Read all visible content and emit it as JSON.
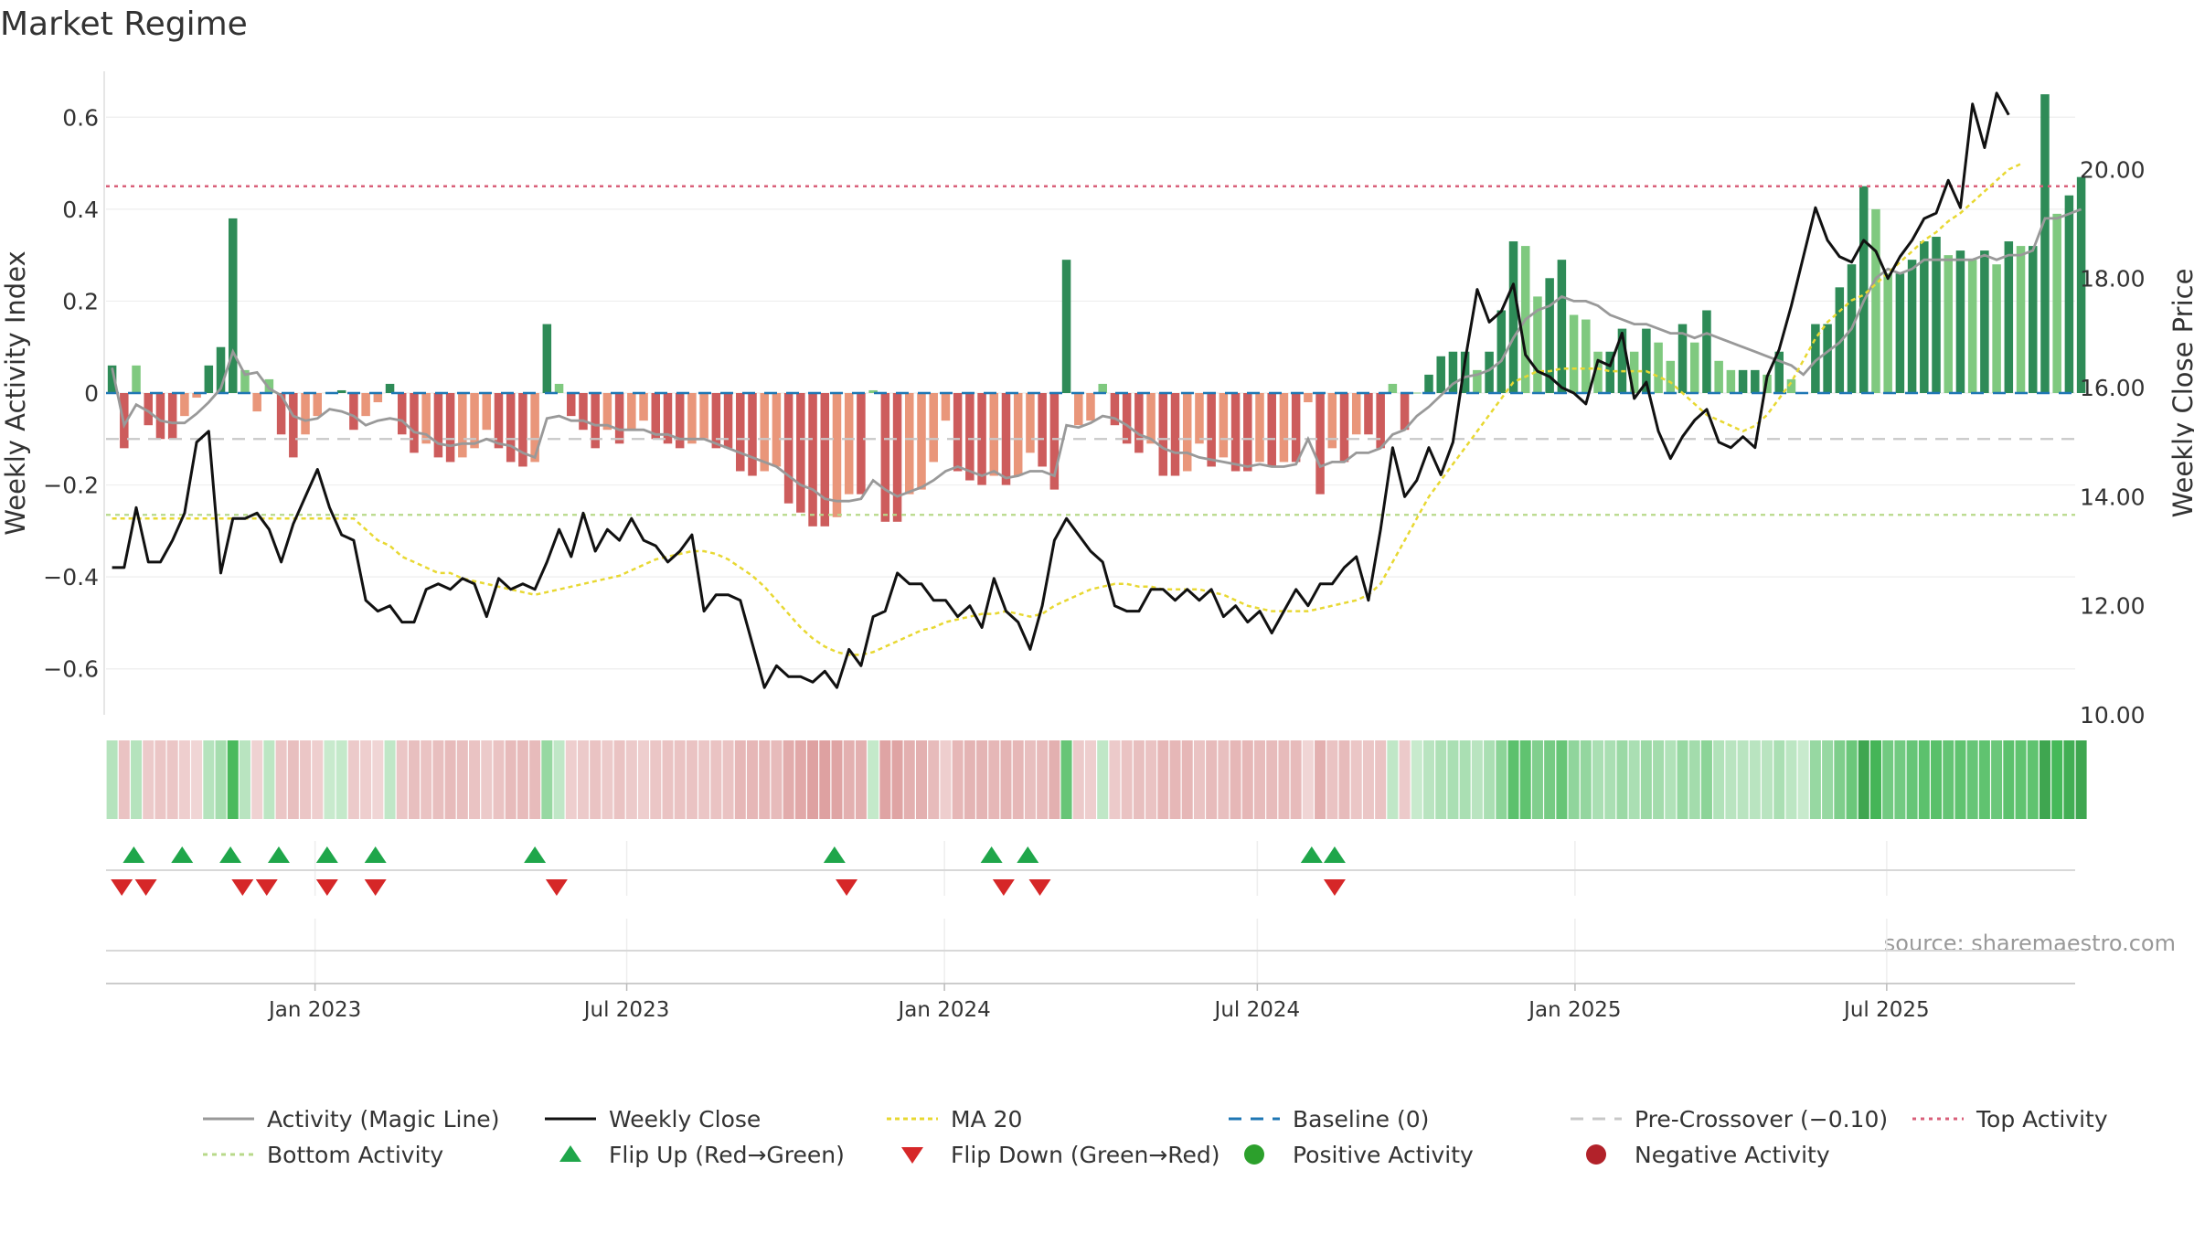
{
  "chart_data": {
    "type": "bar",
    "title": "Market Regime",
    "source": "source: sharemaestro.com",
    "ylabel_left": "Weekly Activity Index",
    "ylabel_right": "Weekly Close Price",
    "left_axis": {
      "ylim": [
        -0.7,
        0.7
      ],
      "ticks": [
        -0.6,
        -0.4,
        -0.2,
        0,
        0.2,
        0.4,
        0.6
      ],
      "tick_labels": [
        "−0.6",
        "−0.4",
        "−0.2",
        "0",
        "0.2",
        "0.4",
        "0.6"
      ]
    },
    "right_axis": {
      "ylim": [
        10.0,
        21.8
      ],
      "ticks": [
        10,
        12,
        14,
        16,
        18,
        20
      ],
      "tick_labels": [
        "10.00",
        "12.00",
        "14.00",
        "16.00",
        "18.00",
        "20.00"
      ]
    },
    "x_axis": {
      "start": "2022-09-05",
      "weeks": 163,
      "ticks": [
        {
          "label": "Jan 2023",
          "week": 17.3
        },
        {
          "label": "Jul 2023",
          "week": 43.1
        },
        {
          "label": "Jan 2024",
          "week": 69.4
        },
        {
          "label": "Jul 2024",
          "week": 95.3
        },
        {
          "label": "Jan 2025",
          "week": 121.6
        },
        {
          "label": "Jul 2025",
          "week": 147.4
        }
      ]
    },
    "reference_lines": {
      "baseline": 0,
      "pre_crossover": -0.1,
      "top_activity": 0.45,
      "bottom_activity": -0.265
    },
    "activity": [
      0.06,
      -0.12,
      0.06,
      -0.07,
      -0.1,
      -0.1,
      -0.05,
      -0.01,
      0.06,
      0.1,
      0.38,
      0.05,
      -0.04,
      0.03,
      -0.09,
      -0.14,
      -0.09,
      -0.05,
      0.002,
      0.006,
      -0.08,
      -0.05,
      -0.02,
      0.02,
      -0.09,
      -0.13,
      -0.11,
      -0.14,
      -0.15,
      -0.14,
      -0.12,
      -0.08,
      -0.12,
      -0.15,
      -0.16,
      -0.15,
      0.15,
      0.02,
      -0.05,
      -0.08,
      -0.12,
      -0.08,
      -0.11,
      -0.08,
      -0.06,
      -0.1,
      -0.11,
      -0.12,
      -0.11,
      -0.1,
      -0.12,
      -0.12,
      -0.17,
      -0.18,
      -0.17,
      -0.16,
      -0.24,
      -0.26,
      -0.29,
      -0.29,
      -0.27,
      -0.22,
      -0.22,
      0.006,
      -0.28,
      -0.28,
      -0.22,
      -0.21,
      -0.15,
      -0.06,
      -0.17,
      -0.19,
      -0.2,
      -0.18,
      -0.2,
      -0.18,
      -0.13,
      -0.16,
      -0.21,
      0.29,
      -0.07,
      -0.06,
      0.02,
      -0.07,
      -0.11,
      -0.13,
      -0.11,
      -0.18,
      -0.18,
      -0.17,
      -0.11,
      -0.16,
      -0.14,
      -0.17,
      -0.17,
      -0.15,
      -0.16,
      -0.15,
      -0.15,
      -0.02,
      -0.22,
      -0.12,
      -0.15,
      -0.09,
      -0.09,
      -0.12,
      0.02,
      -0.08,
      0.001,
      0.04,
      0.08,
      0.09,
      0.09,
      0.05,
      0.09,
      0.18,
      0.33,
      0.32,
      0.21,
      0.25,
      0.29,
      0.17,
      0.16,
      0.09,
      0.09,
      0.14,
      0.09,
      0.14,
      0.11,
      0.07,
      0.15,
      0.11,
      0.18,
      0.07,
      0.05,
      0.05,
      0.05,
      0.04,
      0.09,
      0.03,
      0.001,
      0.15,
      0.15,
      0.23,
      0.28,
      0.45,
      0.4,
      0.26,
      0.26,
      0.29,
      0.33,
      0.34,
      0.3,
      0.31,
      0.29,
      0.31,
      0.28,
      0.33,
      0.32,
      0.32,
      0.65,
      0.39,
      0.43,
      0.47
    ],
    "magic_line": [
      0.055,
      -0.07,
      -0.025,
      -0.04,
      -0.06,
      -0.065,
      -0.065,
      -0.045,
      -0.02,
      0.01,
      0.09,
      0.04,
      0.045,
      0.01,
      -0.005,
      -0.05,
      -0.06,
      -0.055,
      -0.035,
      -0.04,
      -0.05,
      -0.07,
      -0.06,
      -0.055,
      -0.06,
      -0.085,
      -0.09,
      -0.11,
      -0.115,
      -0.11,
      -0.11,
      -0.1,
      -0.11,
      -0.115,
      -0.13,
      -0.14,
      -0.055,
      -0.05,
      -0.06,
      -0.06,
      -0.07,
      -0.07,
      -0.08,
      -0.08,
      -0.08,
      -0.09,
      -0.09,
      -0.1,
      -0.1,
      -0.1,
      -0.11,
      -0.12,
      -0.13,
      -0.14,
      -0.15,
      -0.16,
      -0.18,
      -0.2,
      -0.21,
      -0.23,
      -0.235,
      -0.235,
      -0.23,
      -0.19,
      -0.21,
      -0.225,
      -0.215,
      -0.205,
      -0.19,
      -0.17,
      -0.16,
      -0.17,
      -0.18,
      -0.17,
      -0.185,
      -0.18,
      -0.17,
      -0.17,
      -0.18,
      -0.07,
      -0.075,
      -0.065,
      -0.05,
      -0.055,
      -0.07,
      -0.09,
      -0.1,
      -0.12,
      -0.13,
      -0.13,
      -0.14,
      -0.145,
      -0.15,
      -0.155,
      -0.16,
      -0.155,
      -0.16,
      -0.16,
      -0.155,
      -0.1,
      -0.16,
      -0.15,
      -0.15,
      -0.13,
      -0.13,
      -0.12,
      -0.09,
      -0.08,
      -0.05,
      -0.03,
      -0.005,
      0.02,
      0.035,
      0.04,
      0.05,
      0.07,
      0.12,
      0.16,
      0.18,
      0.19,
      0.21,
      0.2,
      0.2,
      0.19,
      0.17,
      0.16,
      0.15,
      0.15,
      0.14,
      0.13,
      0.13,
      0.12,
      0.13,
      0.12,
      0.11,
      0.1,
      0.09,
      0.08,
      0.07,
      0.06,
      0.04,
      0.07,
      0.09,
      0.11,
      0.14,
      0.2,
      0.25,
      0.27,
      0.26,
      0.27,
      0.29,
      0.29,
      0.29,
      0.29,
      0.29,
      0.3,
      0.29,
      0.3,
      0.3,
      0.31,
      0.38,
      0.38,
      0.39,
      0.4
    ],
    "weekly_close": [
      12.7,
      12.7,
      13.8,
      12.8,
      12.8,
      13.2,
      13.7,
      15.0,
      15.2,
      12.6,
      13.6,
      13.6,
      13.7,
      13.4,
      12.8,
      13.5,
      14.0,
      14.5,
      13.8,
      13.3,
      13.2,
      12.1,
      11.9,
      12.0,
      11.7,
      11.7,
      12.3,
      12.4,
      12.3,
      12.5,
      12.4,
      11.8,
      12.5,
      12.3,
      12.4,
      12.3,
      12.8,
      13.4,
      12.9,
      13.7,
      13.0,
      13.4,
      13.2,
      13.6,
      13.2,
      13.1,
      12.8,
      13.0,
      13.3,
      11.9,
      12.2,
      12.2,
      12.1,
      11.3,
      10.5,
      10.9,
      10.7,
      10.7,
      10.6,
      10.8,
      10.5,
      11.2,
      10.9,
      11.8,
      11.9,
      12.6,
      12.4,
      12.4,
      12.1,
      12.1,
      11.8,
      12.0,
      11.6,
      12.5,
      11.9,
      11.7,
      11.2,
      12.0,
      13.2,
      13.6,
      13.3,
      13.0,
      12.8,
      12.0,
      11.9,
      11.9,
      12.3,
      12.3,
      12.1,
      12.3,
      12.1,
      12.3,
      11.8,
      12.0,
      11.7,
      11.9,
      11.5,
      11.9,
      12.3,
      12.0,
      12.4,
      12.4,
      12.7,
      12.9,
      12.1,
      13.4,
      14.9,
      14.0,
      14.3,
      14.9,
      14.4,
      15.0,
      16.5,
      17.8,
      17.2,
      17.4,
      17.9,
      16.6,
      16.3,
      16.2,
      16.0,
      15.9,
      15.7,
      16.5,
      16.4,
      17.0,
      15.8,
      16.1,
      15.2,
      14.7,
      15.1,
      15.4,
      15.6,
      15.0,
      14.9,
      15.1,
      14.9,
      16.2,
      16.7,
      17.5,
      18.4,
      19.3,
      18.7,
      18.4,
      18.3,
      18.7,
      18.5,
      18.0,
      18.4,
      18.7,
      19.1,
      19.2,
      19.8,
      19.3,
      21.2,
      20.4,
      21.4,
      21.0
    ],
    "ma20": [
      13.6,
      13.6,
      13.6,
      13.6,
      13.6,
      13.6,
      13.6,
      13.6,
      13.6,
      13.6,
      13.6,
      13.6,
      13.6,
      13.6,
      13.6,
      13.6,
      13.6,
      13.6,
      13.6,
      13.6,
      13.6,
      13.4,
      13.2,
      13.1,
      12.9,
      12.8,
      12.7,
      12.6,
      12.6,
      12.5,
      12.45,
      12.4,
      12.35,
      12.3,
      12.25,
      12.2,
      12.25,
      12.3,
      12.35,
      12.4,
      12.45,
      12.5,
      12.55,
      12.65,
      12.75,
      12.85,
      12.9,
      12.95,
      13.0,
      13.0,
      12.95,
      12.85,
      12.7,
      12.55,
      12.35,
      12.1,
      11.85,
      11.6,
      11.4,
      11.25,
      11.15,
      11.1,
      11.1,
      11.15,
      11.25,
      11.35,
      11.45,
      11.55,
      11.6,
      11.7,
      11.75,
      11.8,
      11.85,
      11.85,
      11.9,
      11.85,
      11.8,
      11.85,
      12.0,
      12.1,
      12.2,
      12.3,
      12.35,
      12.4,
      12.4,
      12.35,
      12.35,
      12.3,
      12.3,
      12.3,
      12.3,
      12.25,
      12.2,
      12.1,
      12.0,
      11.95,
      11.9,
      11.9,
      11.9,
      11.9,
      11.95,
      12.0,
      12.05,
      12.1,
      12.2,
      12.4,
      12.8,
      13.2,
      13.6,
      14.0,
      14.3,
      14.6,
      14.9,
      15.2,
      15.5,
      15.8,
      16.1,
      16.2,
      16.3,
      16.3,
      16.35,
      16.35,
      16.35,
      16.35,
      16.3,
      16.3,
      16.3,
      16.3,
      16.2,
      16.1,
      15.9,
      15.7,
      15.5,
      15.4,
      15.3,
      15.2,
      15.3,
      15.5,
      15.8,
      16.1,
      16.5,
      16.9,
      17.2,
      17.4,
      17.6,
      17.7,
      17.9,
      18.1,
      18.3,
      18.5,
      18.7,
      18.85,
      19.05,
      19.2,
      19.4,
      19.6,
      19.8,
      20.0,
      20.1
    ],
    "flip_up_weeks": [
      1.8,
      5.8,
      9.8,
      13.8,
      17.8,
      21.8,
      35.0,
      59.8,
      72.8,
      75.8,
      99.3,
      101.2
    ],
    "flip_down_weeks": [
      0.8,
      2.8,
      10.8,
      12.8,
      17.8,
      21.8,
      36.8,
      60.8,
      73.8,
      76.8,
      101.2
    ],
    "colors": {
      "strong_pos": "#2e8b57",
      "light_pos": "#7fc97f",
      "strong_neg": "#cd5c5c",
      "light_neg": "#e9967a",
      "magic_line": "#999999",
      "close": "#111111",
      "ma20": "#e8d832",
      "baseline": "#1f77b4",
      "pre_crossover": "#c8c8c8",
      "top": "#d9607a",
      "bottom": "#b8d98a",
      "flip_up": "#1fa64a",
      "flip_down": "#d62728",
      "pos_dot": "#2ca02c",
      "neg_dot": "#b2222a"
    },
    "legend": {
      "position": "bottom-center",
      "entries": [
        {
          "key": "magic",
          "label": "Activity (Magic Line)"
        },
        {
          "key": "close",
          "label": "Weekly Close"
        },
        {
          "key": "ma20",
          "label": "MA 20"
        },
        {
          "key": "baseline",
          "label": "Baseline (0)"
        },
        {
          "key": "pre",
          "label": "Pre-Crossover (−0.10)"
        },
        {
          "key": "top",
          "label": "Top Activity"
        },
        {
          "key": "bottom",
          "label": "Bottom Activity"
        },
        {
          "key": "flipup",
          "label": "Flip Up (Red→Green)"
        },
        {
          "key": "flipdown",
          "label": "Flip Down (Green→Red)"
        },
        {
          "key": "posdot",
          "label": "Positive Activity"
        },
        {
          "key": "negdot",
          "label": "Negative Activity"
        }
      ]
    }
  }
}
